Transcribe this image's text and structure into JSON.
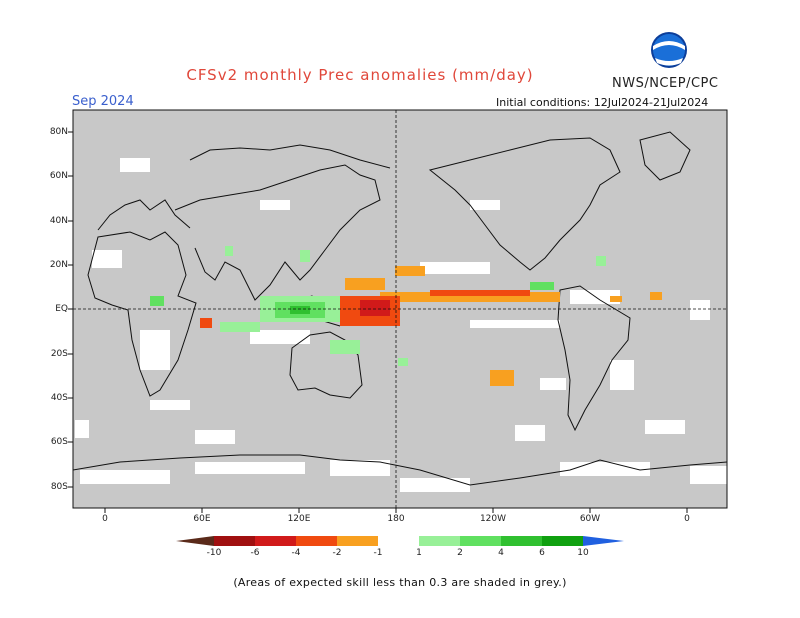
{
  "header": {
    "title": "CFSv2 monthly Prec anomalies (mm/day)",
    "month": "Sep 2024",
    "agency": "NWS/NCEP/CPC",
    "initial_conditions": "Initial conditions: 12Jul2024-21Jul2024",
    "logo_text": "NOAA"
  },
  "axes": {
    "latitude_labels": [
      "80N",
      "60N",
      "40N",
      "20N",
      "EQ",
      "20S",
      "40S",
      "60S",
      "80S"
    ],
    "longitude_labels": [
      "0",
      "60E",
      "120E",
      "180",
      "120W",
      "60W",
      "0"
    ]
  },
  "colorbar": {
    "labels": [
      "-10",
      "-6",
      "-4",
      "-2",
      "-1",
      "1",
      "2",
      "4",
      "6",
      "10"
    ],
    "colors": [
      "#5a2a1a",
      "#a01010",
      "#d11a1a",
      "#f04a10",
      "#f8a020",
      "#ffffff",
      "#98f098",
      "#60e060",
      "#30c030",
      "#10a010",
      "#2060e0"
    ]
  },
  "map": {
    "ocean_color": "#c8c8c8",
    "land_line_color": "#111111"
  },
  "footnote": "(Areas of expected skill less than 0.3 are shaded in grey.)"
}
